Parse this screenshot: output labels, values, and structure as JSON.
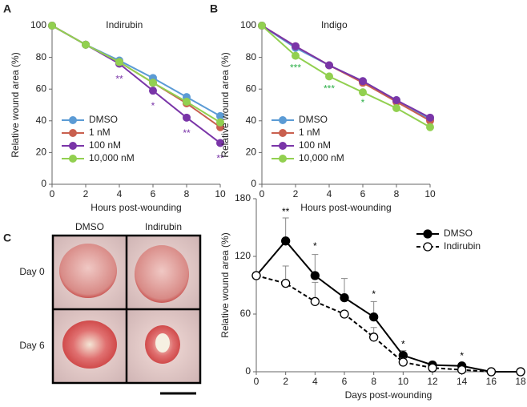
{
  "panels": {
    "a": "A",
    "b": "B",
    "c": "C"
  },
  "photos": {
    "columns": [
      "DMSO",
      "Indirubin"
    ],
    "rows": [
      "Day 0",
      "Day 6"
    ]
  },
  "chart_data": [
    {
      "type": "line",
      "title": "Indirubin",
      "x_label": "Hours post-wounding",
      "y_label": "Relative wound area (%)",
      "x": [
        0,
        2,
        4,
        6,
        8,
        10
      ],
      "xlim": [
        0,
        10
      ],
      "xticks": [
        0,
        2,
        4,
        6,
        8,
        10
      ],
      "ylim": [
        0,
        100
      ],
      "yticks": [
        0,
        20,
        40,
        60,
        80,
        100
      ],
      "legend": "lower left",
      "series": [
        {
          "name": "DMSO",
          "color": "#5b9bd5",
          "values": [
            100,
            88,
            78,
            67,
            55,
            43
          ]
        },
        {
          "name": "1 nM",
          "color": "#c9604f",
          "values": [
            100,
            88,
            77,
            64,
            51,
            36
          ]
        },
        {
          "name": "100 nM",
          "color": "#7a35a8",
          "values": [
            100,
            88,
            76,
            59,
            42,
            26
          ]
        },
        {
          "name": "10,000 nM",
          "color": "#92d050",
          "values": [
            100,
            88,
            77,
            64,
            52,
            39
          ]
        }
      ],
      "annotations": [
        {
          "label": "**",
          "x": 4,
          "y": 66,
          "color": "#7a35a8"
        },
        {
          "label": "*",
          "x": 6,
          "y": 49,
          "color": "#7a35a8"
        },
        {
          "label": "**",
          "x": 8,
          "y": 32,
          "color": "#7a35a8"
        },
        {
          "label": "**",
          "x": 10,
          "y": 16,
          "color": "#7a35a8"
        }
      ]
    },
    {
      "type": "line",
      "title": "Indigo",
      "x_label": "Hours post-wounding",
      "y_label": "Relative wound area (%)",
      "x": [
        0,
        2,
        4,
        6,
        8,
        10
      ],
      "xlim": [
        0,
        10
      ],
      "xticks": [
        0,
        2,
        4,
        6,
        8,
        10
      ],
      "ylim": [
        0,
        100
      ],
      "yticks": [
        0,
        20,
        40,
        60,
        80,
        100
      ],
      "legend": "lower left",
      "series": [
        {
          "name": "DMSO",
          "color": "#5b9bd5",
          "values": [
            100,
            86,
            75,
            65,
            53,
            41
          ]
        },
        {
          "name": "1 nM",
          "color": "#c9604f",
          "values": [
            100,
            87,
            75,
            64,
            52,
            40
          ]
        },
        {
          "name": "100 nM",
          "color": "#7a35a8",
          "values": [
            100,
            87,
            75,
            65,
            53,
            42
          ]
        },
        {
          "name": "10,000 nM",
          "color": "#92d050",
          "values": [
            100,
            81,
            68,
            58,
            48,
            36
          ]
        }
      ],
      "annotations": [
        {
          "label": "***",
          "x": 2,
          "y": 73,
          "color": "#2fb04a"
        },
        {
          "label": "***",
          "x": 4,
          "y": 60,
          "color": "#2fb04a"
        },
        {
          "label": "*",
          "x": 6,
          "y": 51,
          "color": "#2fb04a"
        }
      ]
    },
    {
      "type": "line",
      "x_label": "Days post-wounding",
      "y_label": "Relative wound area (%)",
      "x": [
        0,
        2,
        4,
        6,
        8,
        10,
        12,
        14,
        16,
        18
      ],
      "xlim": [
        0,
        18
      ],
      "xticks": [
        0,
        2,
        4,
        6,
        8,
        10,
        12,
        14,
        16,
        18
      ],
      "ylim": [
        0,
        180
      ],
      "yticks": [
        0,
        60,
        120,
        180
      ],
      "legend": "upper right",
      "series": [
        {
          "name": "DMSO",
          "color": "#000000",
          "marker_fill": "#000000",
          "linestyle": "solid",
          "values": [
            100,
            136,
            100,
            77,
            57,
            17,
            7,
            6,
            0,
            0
          ],
          "errors": [
            0,
            24,
            22,
            20,
            16,
            5,
            3,
            3,
            0,
            0
          ]
        },
        {
          "name": "Indirubin",
          "color": "#000000",
          "marker_fill": "#ffffff",
          "linestyle": "dashed",
          "values": [
            100,
            92,
            73,
            60,
            36,
            10,
            4,
            2,
            0,
            0
          ],
          "errors": [
            0,
            18,
            20,
            0,
            10,
            4,
            2,
            1,
            0,
            0
          ]
        }
      ],
      "annotations": [
        {
          "label": "**",
          "x": 2,
          "y": 166,
          "color": "#000000"
        },
        {
          "label": "*",
          "x": 4,
          "y": 130,
          "color": "#000000"
        },
        {
          "label": "*",
          "x": 8,
          "y": 80,
          "color": "#000000"
        },
        {
          "label": "*",
          "x": 10,
          "y": 28,
          "color": "#000000"
        },
        {
          "label": "*",
          "x": 14,
          "y": 16,
          "color": "#000000"
        }
      ]
    }
  ]
}
